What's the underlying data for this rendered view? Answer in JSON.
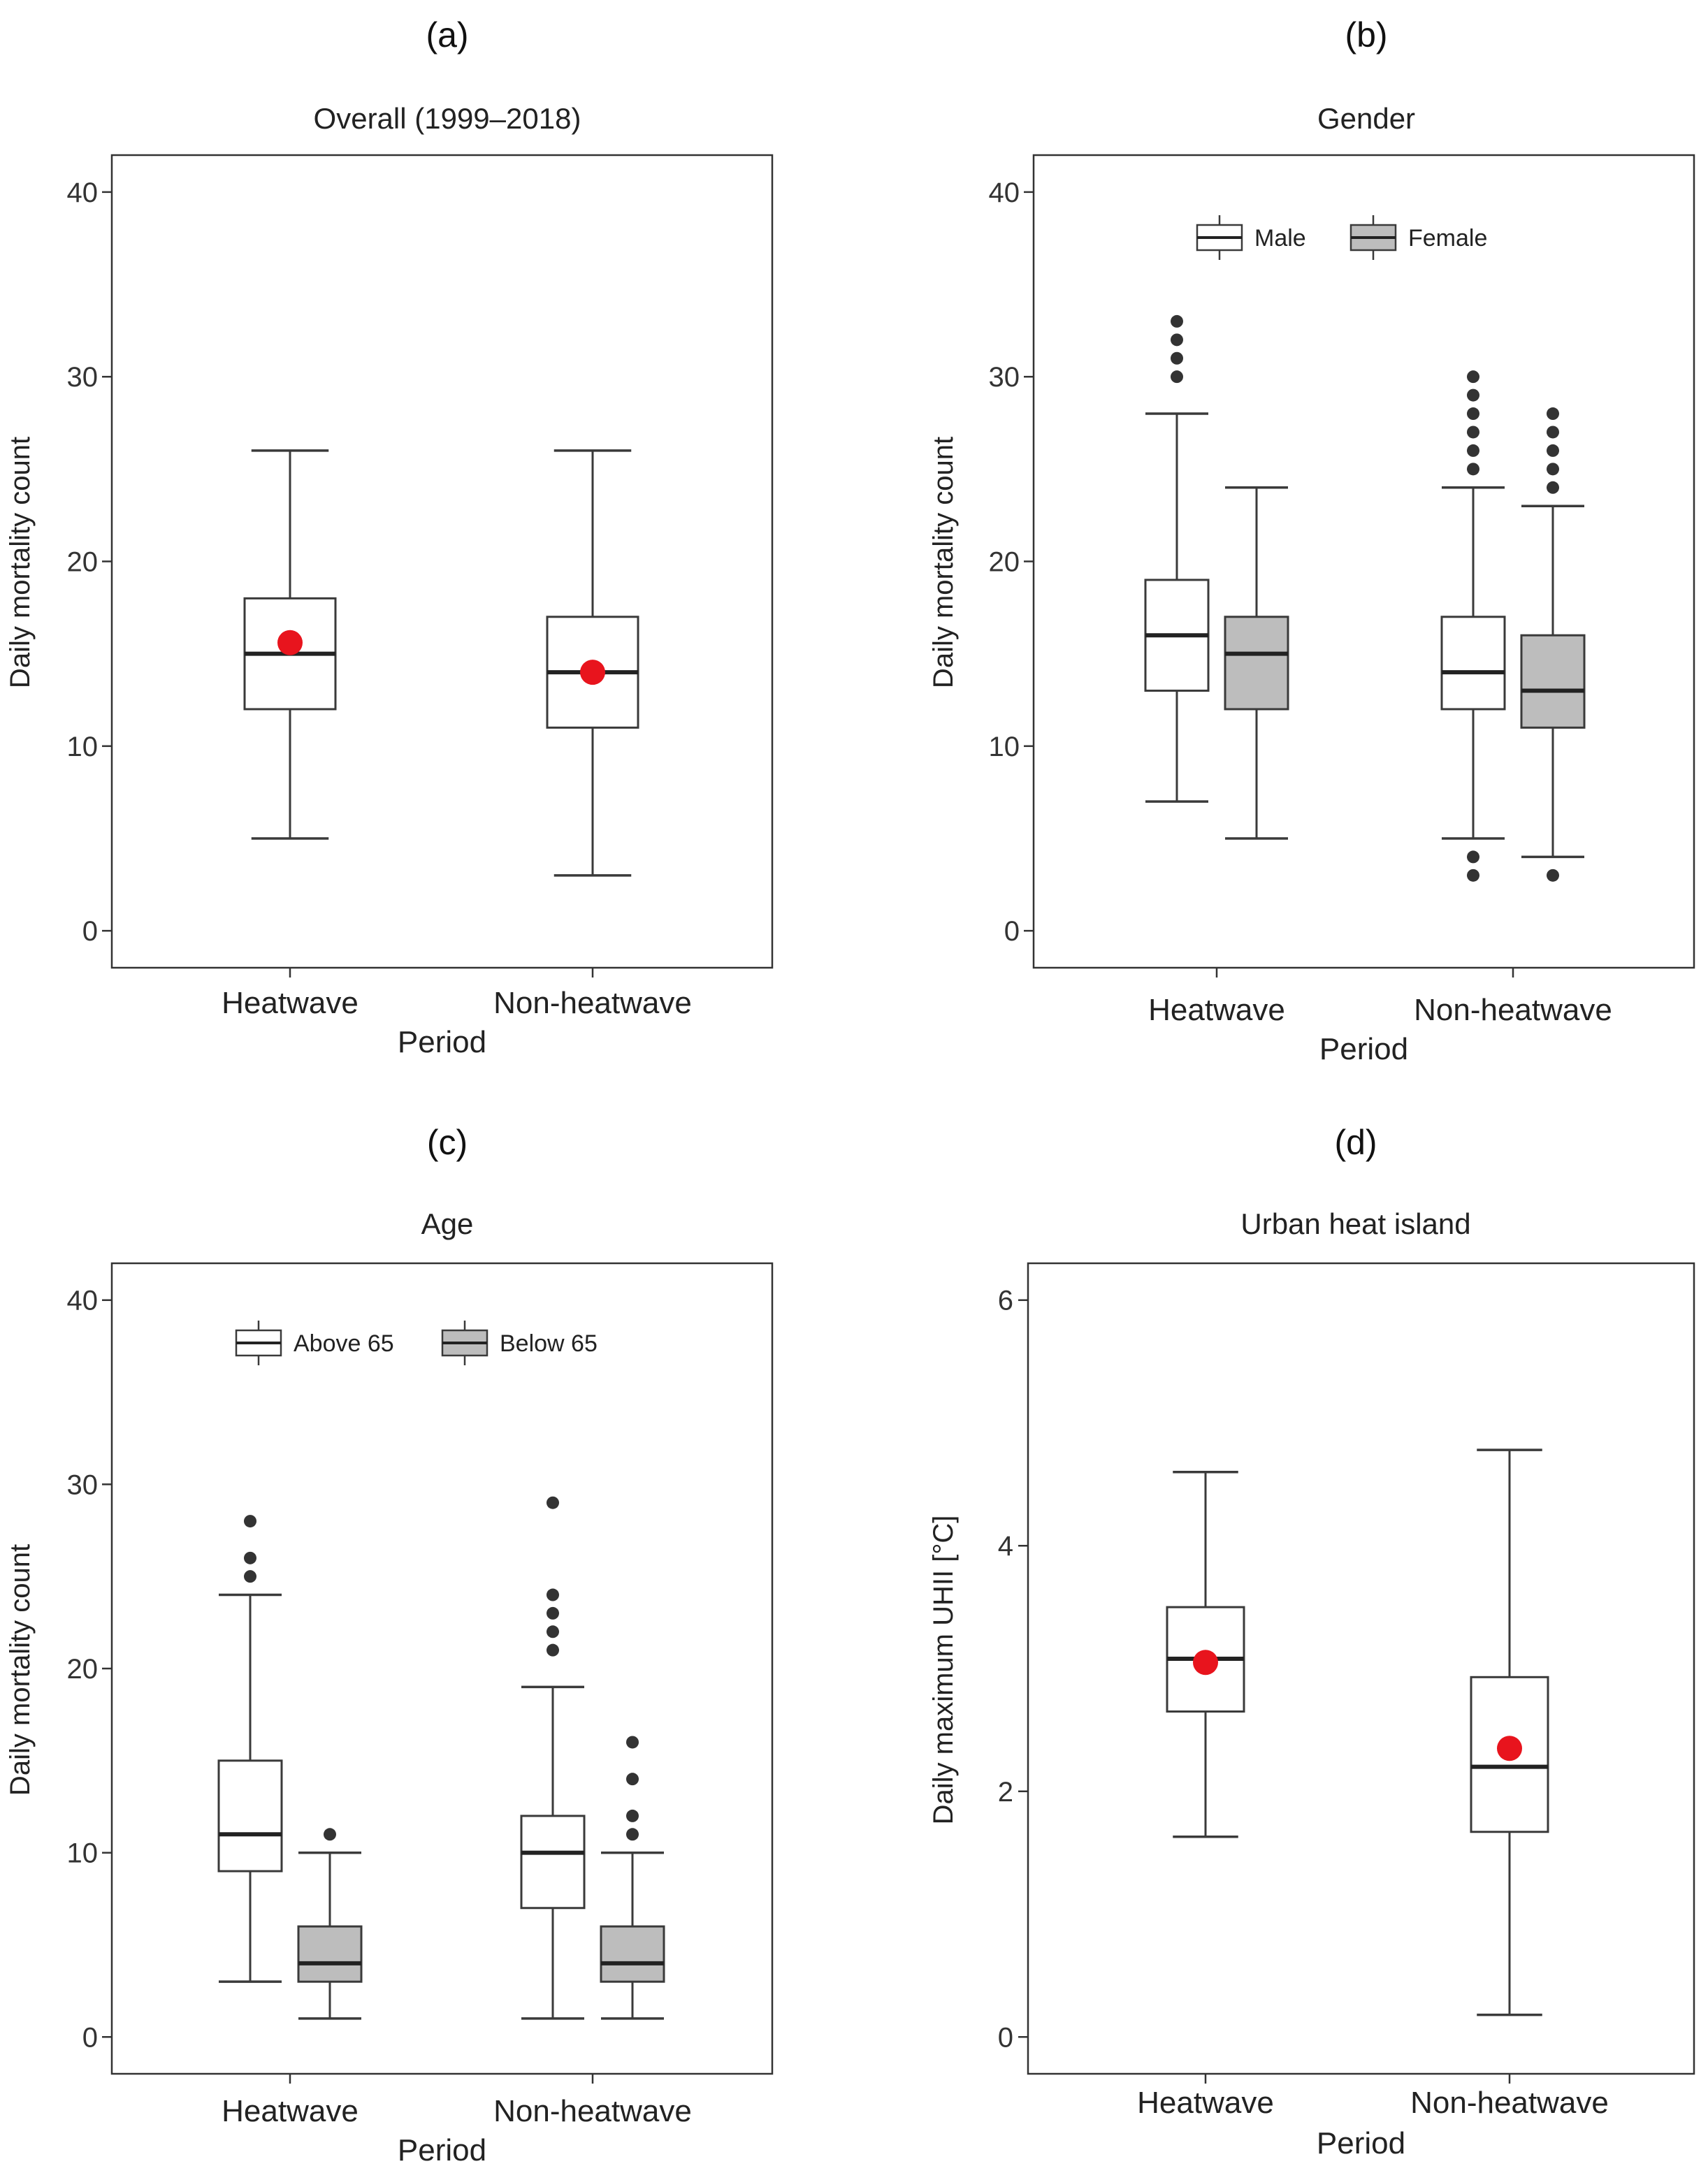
{
  "colors": {
    "box_fill_primary": "#ffffff",
    "box_fill_secondary": "#bdbdbd",
    "box_stroke": "#3a3a3a",
    "outlier": "#333333",
    "mean_marker": "#e8141d"
  },
  "chart_data": [
    {
      "type": "boxplot",
      "panel_label": "(a)",
      "title": "Overall (1999–2018)",
      "xlabel": "Period",
      "ylabel": "Daily mortality count",
      "ylim": [
        -2,
        42
      ],
      "yticks": [
        0,
        10,
        20,
        30,
        40
      ],
      "categories": [
        "Heatwave",
        "Non-heatwave"
      ],
      "legend": null,
      "series": [
        {
          "name": "",
          "fill": "primary",
          "boxes": [
            {
              "category": "Heatwave",
              "whisker_low": 5,
              "q1": 12,
              "median": 15,
              "q3": 18,
              "whisker_high": 26,
              "outliers": [],
              "mean": 15.6
            },
            {
              "category": "Non-heatwave",
              "whisker_low": 3,
              "q1": 11,
              "median": 14,
              "q3": 17,
              "whisker_high": 26,
              "outliers": [],
              "mean": 14.0
            }
          ]
        }
      ]
    },
    {
      "type": "boxplot",
      "panel_label": "(b)",
      "title": "Gender",
      "xlabel": "Period",
      "ylabel": "Daily mortality count",
      "ylim": [
        -2,
        42
      ],
      "yticks": [
        0,
        10,
        20,
        30,
        40
      ],
      "categories": [
        "Heatwave",
        "Non-heatwave"
      ],
      "legend": "top-center",
      "series": [
        {
          "name": "Male",
          "fill": "primary",
          "boxes": [
            {
              "category": "Heatwave",
              "whisker_low": 7,
              "q1": 13,
              "median": 16,
              "q3": 19,
              "whisker_high": 28,
              "outliers": [
                30,
                31,
                32,
                33
              ]
            },
            {
              "category": "Non-heatwave",
              "whisker_low": 5,
              "q1": 12,
              "median": 14,
              "q3": 17,
              "whisker_high": 24,
              "outliers": [
                3,
                4,
                25,
                26,
                27,
                28,
                29,
                30
              ]
            }
          ]
        },
        {
          "name": "Female",
          "fill": "secondary",
          "boxes": [
            {
              "category": "Heatwave",
              "whisker_low": 5,
              "q1": 12,
              "median": 15,
              "q3": 17,
              "whisker_high": 24,
              "outliers": []
            },
            {
              "category": "Non-heatwave",
              "whisker_low": 4,
              "q1": 11,
              "median": 13,
              "q3": 16,
              "whisker_high": 23,
              "outliers": [
                3,
                24,
                25,
                26,
                27,
                28
              ]
            }
          ]
        }
      ]
    },
    {
      "type": "boxplot",
      "panel_label": "(c)",
      "title": "Age",
      "xlabel": "Period",
      "ylabel": "Daily mortality count",
      "ylim": [
        -2,
        42
      ],
      "yticks": [
        0,
        10,
        20,
        30,
        40
      ],
      "categories": [
        "Heatwave",
        "Non-heatwave"
      ],
      "legend": "top-center",
      "series": [
        {
          "name": "Above 65",
          "fill": "primary",
          "boxes": [
            {
              "category": "Heatwave",
              "whisker_low": 3,
              "q1": 9,
              "median": 11,
              "q3": 15,
              "whisker_high": 24,
              "outliers": [
                25,
                26,
                28
              ]
            },
            {
              "category": "Non-heatwave",
              "whisker_low": 1,
              "q1": 7,
              "median": 10,
              "q3": 12,
              "whisker_high": 19,
              "outliers": [
                21,
                22,
                23,
                24,
                29
              ]
            }
          ]
        },
        {
          "name": "Below 65",
          "fill": "secondary",
          "boxes": [
            {
              "category": "Heatwave",
              "whisker_low": 1,
              "q1": 3,
              "median": 4,
              "q3": 6,
              "whisker_high": 10,
              "outliers": [
                11
              ]
            },
            {
              "category": "Non-heatwave",
              "whisker_low": 1,
              "q1": 3,
              "median": 4,
              "q3": 6,
              "whisker_high": 10,
              "outliers": [
                11,
                12,
                14,
                16
              ]
            }
          ]
        }
      ]
    },
    {
      "type": "boxplot",
      "panel_label": "(d)",
      "title": "Urban heat island",
      "xlabel": "Period",
      "ylabel": "Daily maximum UHII  [°C]",
      "ylim": [
        -0.3,
        6.3
      ],
      "yticks": [
        0,
        2,
        4,
        6
      ],
      "categories": [
        "Heatwave",
        "Non-heatwave"
      ],
      "legend": null,
      "series": [
        {
          "name": "",
          "fill": "primary",
          "boxes": [
            {
              "category": "Heatwave",
              "whisker_low": 1.63,
              "q1": 2.65,
              "median": 3.08,
              "q3": 3.5,
              "whisker_high": 4.6,
              "outliers": [],
              "mean": 3.05
            },
            {
              "category": "Non-heatwave",
              "whisker_low": 0.18,
              "q1": 1.67,
              "median": 2.2,
              "q3": 2.93,
              "whisker_high": 4.78,
              "outliers": [],
              "mean": 2.35
            }
          ]
        }
      ]
    }
  ]
}
